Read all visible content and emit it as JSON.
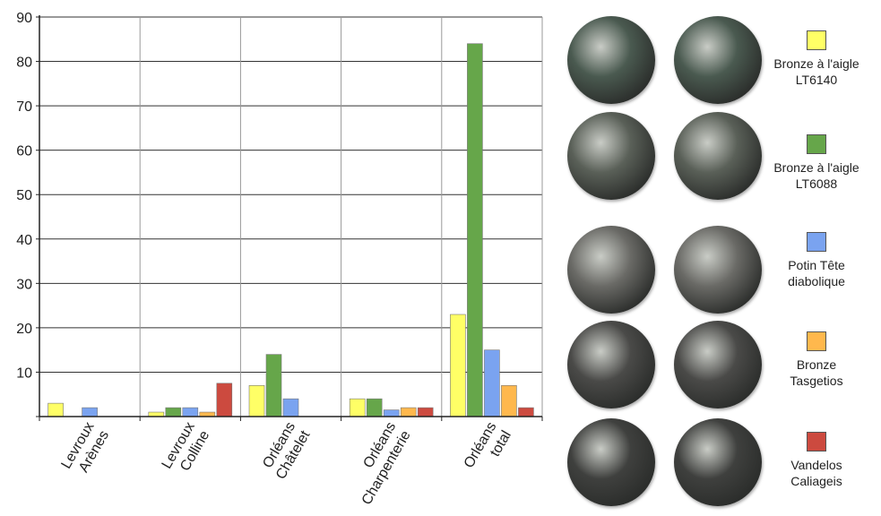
{
  "chart_data": {
    "type": "bar",
    "categories": [
      "Levroux\nArènes",
      "Levroux\nColline",
      "Orléans\nChâtelet",
      "Orléans\nCharpenterie",
      "Orléans\ntotal"
    ],
    "series": [
      {
        "name": "Bronze à l'aigle\nLT6140",
        "color": "#ffff66",
        "values": [
          3,
          1,
          7,
          4,
          23
        ]
      },
      {
        "name": "Bronze à l'aigle\nLT6088",
        "color": "#66a64a",
        "values": [
          0,
          2,
          14,
          4,
          84
        ]
      },
      {
        "name": "Potin Tête\ndiabolique",
        "color": "#7aa3f0",
        "values": [
          2,
          2,
          4,
          1.5,
          15
        ]
      },
      {
        "name": "Bronze\nTasgetios",
        "color": "#ffb84d",
        "values": [
          0,
          1,
          0,
          2,
          7
        ]
      },
      {
        "name": "Vandelos\nCaliageis",
        "color": "#cc4a3f",
        "values": [
          0,
          7.5,
          0,
          2,
          2
        ]
      }
    ],
    "y_ticks": [
      "10",
      "20",
      "30",
      "40",
      "50",
      "60",
      "70",
      "80",
      "90"
    ],
    "ylim": [
      0,
      90
    ],
    "grid": true,
    "legend_position": "right"
  },
  "coins": [
    {
      "name": "bronze-aigle-lt6140",
      "obverse": "obverse-coin-1",
      "reverse": "reverse-coin-1",
      "tone": "#4a5a50"
    },
    {
      "name": "bronze-aigle-lt6088",
      "obverse": "obverse-coin-2",
      "reverse": "reverse-coin-2",
      "tone": "#5a6058"
    },
    {
      "name": "potin-tete-diabolique",
      "obverse": "obverse-coin-3",
      "reverse": "reverse-coin-3",
      "tone": "#6a6a66"
    },
    {
      "name": "bronze-tasgetios",
      "obverse": "obverse-coin-4",
      "reverse": "reverse-coin-4",
      "tone": "#4a4a48"
    },
    {
      "name": "vandelos-caliageis",
      "obverse": "obverse-coin-5",
      "reverse": "reverse-coin-5",
      "tone": "#3f403e"
    }
  ]
}
